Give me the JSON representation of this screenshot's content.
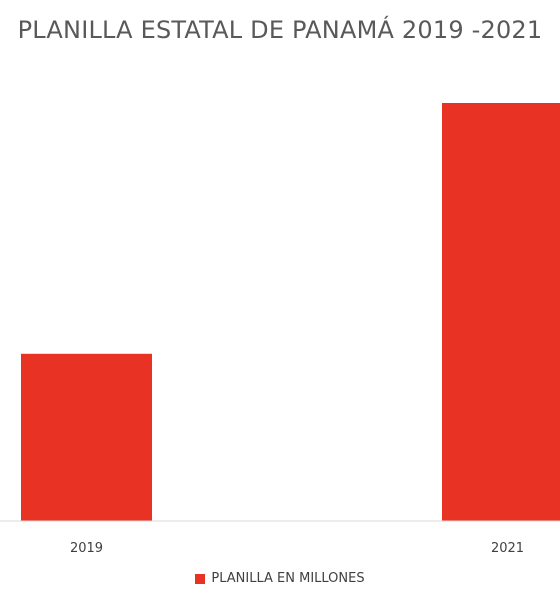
{
  "chart_data": {
    "type": "bar",
    "title": "PLANILLA ESTATAL DE PANAMÁ 2019 -2021",
    "categories": [
      "2019",
      "2021"
    ],
    "series": [
      {
        "name": "PLANILLA EN MILLONES",
        "values": [
          100,
          250
        ],
        "color": "#E83324"
      }
    ],
    "xlabel": "",
    "ylabel": "",
    "ylim": [
      0,
      250
    ],
    "grid": false,
    "legend_position": "bottom"
  }
}
